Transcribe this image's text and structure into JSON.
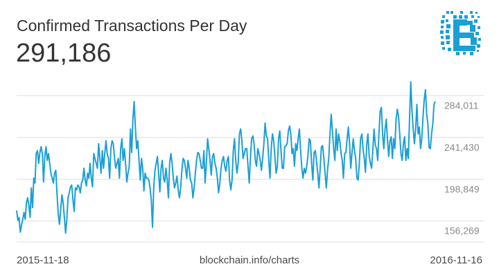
{
  "header": {
    "title": "Confirmed Transactions Per Day",
    "headline_value": "291,186"
  },
  "logo": {
    "icon": "blockchain-logo-icon",
    "color": "#1a9fd6"
  },
  "footer": {
    "start_date": "2015-11-18",
    "source": "blockchain.info/charts",
    "end_date": "2016-11-16"
  },
  "chart_data": {
    "type": "line",
    "title": "Confirmed Transactions Per Day",
    "x_range": [
      "2015-11-18",
      "2016-11-16"
    ],
    "ylim": [
      134978,
      305302
    ],
    "y_ticks": [
      156269,
      198849,
      241430,
      284011
    ],
    "y_tick_labels": [
      "156,269",
      "198,849",
      "241,430",
      "284,011"
    ],
    "grid": true,
    "line_color": "#1a9fd6",
    "series": [
      {
        "values": [
          167000,
          157000,
          160000,
          145000,
          152000,
          158000,
          165000,
          158000,
          175000,
          180000,
          172000,
          160000,
          190000,
          170000,
          200000,
          195000,
          225000,
          228000,
          215000,
          226000,
          232000,
          225000,
          196000,
          222000,
          232000,
          218000,
          225000,
          215000,
          205000,
          200000,
          195000,
          205000,
          208000,
          184000,
          163000,
          153000,
          168000,
          183000,
          175000,
          160000,
          144000,
          158000,
          180000,
          185000,
          191000,
          193000,
          178000,
          166000,
          190000,
          188000,
          193000,
          191000,
          185000,
          195000,
          198000,
          210000,
          198000,
          192000,
          205000,
          200000,
          215000,
          200000,
          191000,
          225000,
          220000,
          215000,
          210000,
          235000,
          220000,
          205000,
          228000,
          210000,
          225000,
          238000,
          225000,
          220000,
          200000,
          230000,
          238000,
          235000,
          220000,
          210000,
          215000,
          220000,
          200000,
          230000,
          240000,
          218000,
          230000,
          215000,
          196000,
          205000,
          212000,
          250000,
          226000,
          260000,
          278000,
          252000,
          230000,
          238000,
          218000,
          198000,
          220000,
          210000,
          187000,
          205000,
          200000,
          200000,
          198000,
          190000,
          178000,
          150000,
          190000,
          208000,
          215000,
          222000,
          205000,
          186000,
          210000,
          218000,
          200000,
          196000,
          210000,
          198000,
          180000,
          215000,
          225000,
          215000,
          200000,
          190000,
          195000,
          202000,
          188000,
          180000,
          190000,
          208000,
          220000,
          218000,
          210000,
          200000,
          218000,
          210000,
          198000,
          195000,
          180000,
          190000,
          205000,
          218000,
          226000,
          225000,
          218000,
          210000,
          210000,
          228000,
          195000,
          215000,
          240000,
          230000,
          218000,
          203000,
          222000,
          225000,
          215000,
          210000,
          200000,
          185000,
          195000,
          210000,
          218000,
          222000,
          212000,
          207000,
          218000,
          222000,
          198000,
          188000,
          198000,
          228000,
          240000,
          218000,
          205000,
          215000,
          245000,
          250000,
          238000,
          220000,
          225000,
          230000,
          230000,
          213000,
          195000,
          220000,
          240000,
          243000,
          235000,
          218000,
          212000,
          230000,
          225000,
          218000,
          208000,
          220000,
          235000,
          256000,
          243000,
          240000,
          218000,
          200000,
          230000,
          245000,
          238000,
          222000,
          205000,
          212000,
          240000,
          248000,
          228000,
          210000,
          210000,
          232000,
          233000,
          235000,
          248000,
          253000,
          245000,
          225000,
          230000,
          212000,
          235000,
          228000,
          240000,
          250000,
          228000,
          210000,
          200000,
          210000,
          205000,
          212000,
          223000,
          240000,
          238000,
          215000,
          198000,
          226000,
          228000,
          218000,
          205000,
          190000,
          210000,
          232000,
          233000,
          220000,
          205000,
          190000,
          208000,
          220000,
          245000,
          265000,
          248000,
          230000,
          218000,
          250000,
          228000,
          245000,
          238000,
          226000,
          218000,
          200000,
          225000,
          226000,
          240000,
          252000,
          235000,
          210000,
          226000,
          240000,
          228000,
          220000,
          200000,
          198000,
          215000,
          240000,
          245000,
          230000,
          220000,
          206000,
          234000,
          245000,
          223000,
          215000,
          210000,
          228000,
          250000,
          234000,
          230000,
          218000,
          245000,
          268000,
          272000,
          245000,
          230000,
          250000,
          260000,
          238000,
          222000,
          238000,
          242000,
          220000,
          240000,
          230000,
          260000,
          270000,
          263000,
          245000,
          225000,
          218000,
          235000,
          242000,
          218000,
          230000,
          220000,
          260000,
          298000,
          268000,
          250000,
          235000,
          250000,
          275000,
          245000,
          252000,
          230000,
          240000,
          262000,
          280000,
          290000,
          265000,
          255000,
          231000,
          230000,
          245000,
          255000,
          275000,
          278000
        ]
      }
    ]
  }
}
